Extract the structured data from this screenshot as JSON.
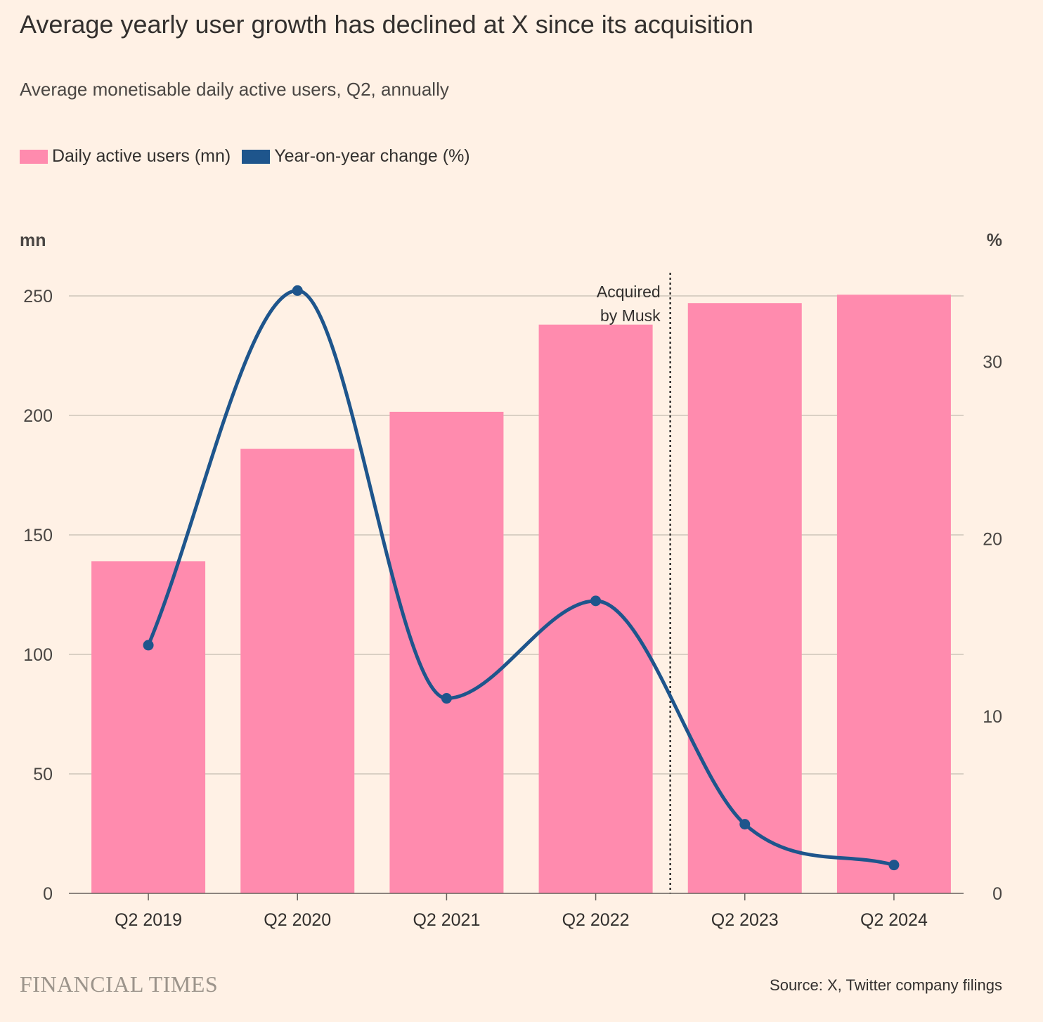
{
  "title": "Average yearly user growth has declined at X since its acquisition",
  "subtitle": "Average monetisable daily active users, Q2, annually",
  "legend": [
    {
      "label": "Daily active users (mn)",
      "color": "#FF8BAE"
    },
    {
      "label": "Year-on-year change (%)",
      "color": "#1E558C"
    }
  ],
  "source": "Source: X, Twitter company filings",
  "brand": "FINANCIAL TIMES",
  "chart_data": {
    "type": "bar",
    "categories": [
      "Q2 2019",
      "Q2 2020",
      "Q2 2021",
      "Q2 2022",
      "Q2 2023",
      "Q2 2024"
    ],
    "series": [
      {
        "name": "Daily active users (mn)",
        "type": "bar",
        "axis": "left",
        "color": "#FF8BAE",
        "values": [
          139,
          186,
          201.5,
          238,
          247,
          250.5
        ]
      },
      {
        "name": "Year-on-year change (%)",
        "type": "line",
        "axis": "right",
        "color": "#1E558C",
        "values": [
          14,
          34,
          11,
          16.5,
          3.9,
          1.6
        ]
      }
    ],
    "left_axis": {
      "label": "mn",
      "ticks": [
        0,
        50,
        100,
        150,
        200,
        250
      ],
      "ylim": [
        0,
        250
      ]
    },
    "right_axis": {
      "label": "%",
      "ticks": [
        0,
        10,
        20,
        30
      ],
      "ylim": [
        0,
        33.7
      ]
    },
    "annotation": {
      "text_line1": "Acquired",
      "text_line2": "by Musk"
    },
    "grid": true
  }
}
